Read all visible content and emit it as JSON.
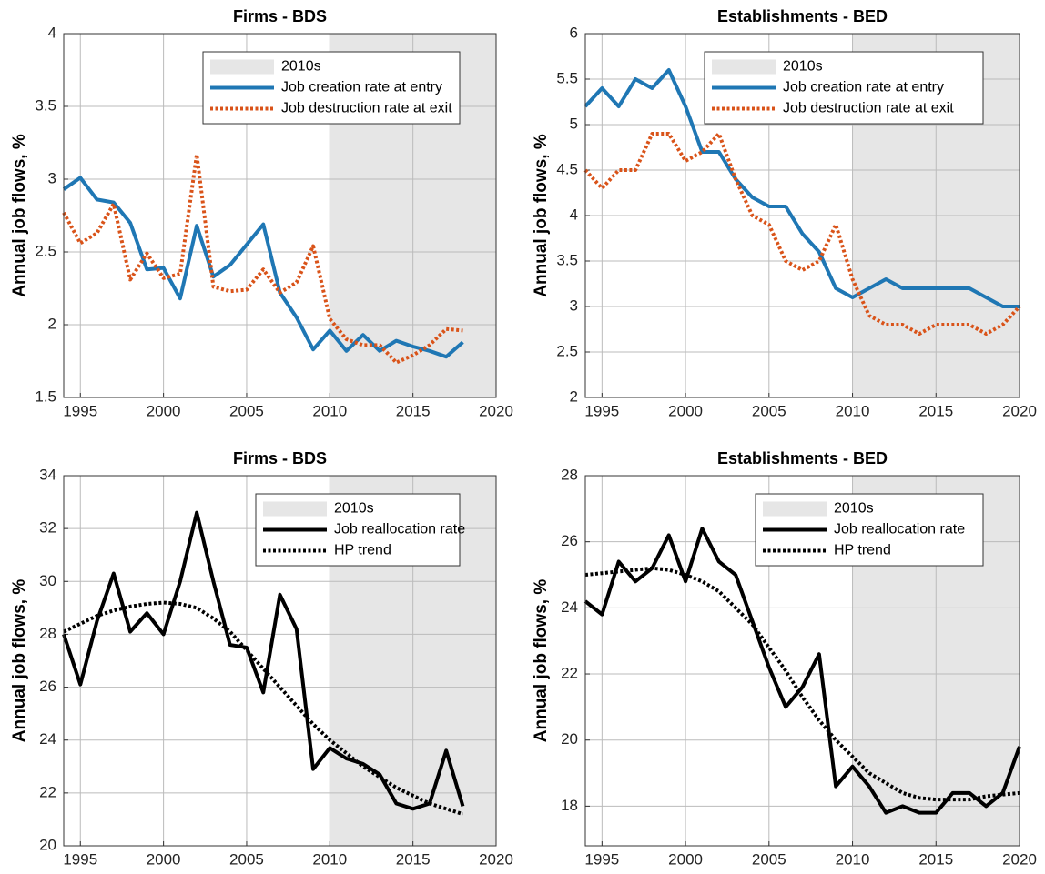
{
  "chart_data": [
    {
      "type": "line",
      "title": "Firms - BDS",
      "ylabel": "Annual job flows, %",
      "grid": true,
      "legend": "upper right",
      "xlim": [
        1994,
        2020
      ],
      "xticks": [
        1995,
        2000,
        2005,
        2010,
        2015,
        2020
      ],
      "ylim": [
        1.5,
        4
      ],
      "yticks": [
        1.5,
        2,
        2.5,
        3,
        3.5,
        4
      ],
      "shade": {
        "label": "2010s",
        "color": "#e6e6e6",
        "range": [
          2010,
          2020
        ]
      },
      "x": [
        1994,
        1995,
        1996,
        1997,
        1998,
        1999,
        2000,
        2001,
        2002,
        2003,
        2004,
        2005,
        2006,
        2007,
        2008,
        2009,
        2010,
        2011,
        2012,
        2013,
        2014,
        2015,
        2016,
        2017,
        2018
      ],
      "series": [
        {
          "name": "Job creation rate at entry",
          "color": "#1f77b4",
          "style": "solid",
          "values": [
            2.93,
            3.01,
            2.86,
            2.84,
            2.7,
            2.38,
            2.39,
            2.18,
            2.68,
            2.33,
            2.41,
            2.55,
            2.69,
            2.22,
            2.05,
            1.83,
            1.96,
            1.82,
            1.93,
            1.82,
            1.89,
            1.85,
            1.82,
            1.78,
            1.88
          ]
        },
        {
          "name": "Job destruction rate at exit",
          "color": "#d95319",
          "style": "dotted",
          "values": [
            2.77,
            2.56,
            2.63,
            2.83,
            2.31,
            2.49,
            2.32,
            2.35,
            3.17,
            2.26,
            2.23,
            2.24,
            2.38,
            2.22,
            2.29,
            2.54,
            2.04,
            1.9,
            1.86,
            1.86,
            1.74,
            1.79,
            1.86,
            1.97,
            1.96
          ]
        }
      ]
    },
    {
      "type": "line",
      "title": "Establishments - BED",
      "ylabel": "Annual job flows, %",
      "grid": true,
      "legend": "upper right",
      "xlim": [
        1994,
        2020
      ],
      "xticks": [
        1995,
        2000,
        2005,
        2010,
        2015,
        2020
      ],
      "ylim": [
        2,
        6
      ],
      "yticks": [
        2,
        2.5,
        3,
        3.5,
        4,
        4.5,
        5,
        5.5,
        6
      ],
      "shade": {
        "label": "2010s",
        "color": "#e6e6e6",
        "range": [
          2010,
          2020
        ]
      },
      "x": [
        1994,
        1995,
        1996,
        1997,
        1998,
        1999,
        2000,
        2001,
        2002,
        2003,
        2004,
        2005,
        2006,
        2007,
        2008,
        2009,
        2010,
        2011,
        2012,
        2013,
        2014,
        2015,
        2016,
        2017,
        2018,
        2019,
        2020
      ],
      "series": [
        {
          "name": "Job creation rate at entry",
          "color": "#1f77b4",
          "style": "solid",
          "values": [
            5.2,
            5.4,
            5.2,
            5.5,
            5.4,
            5.6,
            5.2,
            4.7,
            4.7,
            4.4,
            4.2,
            4.1,
            4.1,
            3.8,
            3.6,
            3.2,
            3.1,
            3.2,
            3.3,
            3.2,
            3.2,
            3.2,
            3.2,
            3.2,
            3.1,
            3.0,
            3.0
          ]
        },
        {
          "name": "Job destruction rate at exit",
          "color": "#d95319",
          "style": "dotted",
          "values": [
            4.5,
            4.3,
            4.5,
            4.5,
            4.9,
            4.9,
            4.6,
            4.7,
            4.9,
            4.4,
            4.0,
            3.9,
            3.5,
            3.4,
            3.5,
            3.9,
            3.3,
            2.9,
            2.8,
            2.8,
            2.7,
            2.8,
            2.8,
            2.8,
            2.7,
            2.8,
            3.0
          ]
        }
      ]
    },
    {
      "type": "line",
      "title": "Firms - BDS",
      "ylabel": "Annual job flows, %",
      "grid": true,
      "legend": "upper right",
      "xlim": [
        1994,
        2020
      ],
      "xticks": [
        1995,
        2000,
        2005,
        2010,
        2015,
        2020
      ],
      "ylim": [
        20,
        34
      ],
      "yticks": [
        20,
        22,
        24,
        26,
        28,
        30,
        32,
        34
      ],
      "shade": {
        "label": "2010s",
        "color": "#e6e6e6",
        "range": [
          2010,
          2020
        ]
      },
      "x": [
        1994,
        1995,
        1996,
        1997,
        1998,
        1999,
        2000,
        2001,
        2002,
        2003,
        2004,
        2005,
        2006,
        2007,
        2008,
        2009,
        2010,
        2011,
        2012,
        2013,
        2014,
        2015,
        2016,
        2017,
        2018
      ],
      "series": [
        {
          "name": "Job reallocation rate",
          "color": "#000000",
          "style": "solid",
          "values": [
            28.0,
            26.1,
            28.5,
            30.3,
            28.1,
            28.8,
            28.0,
            30.0,
            32.6,
            30.0,
            27.6,
            27.5,
            25.8,
            29.5,
            28.2,
            22.9,
            23.7,
            23.3,
            23.1,
            22.7,
            21.6,
            21.4,
            21.6,
            23.6,
            21.5
          ]
        },
        {
          "name": "HP trend",
          "color": "#000000",
          "style": "dotted",
          "values": [
            28.1,
            28.4,
            28.7,
            28.9,
            29.05,
            29.15,
            29.2,
            29.15,
            29.0,
            28.6,
            28.1,
            27.4,
            26.7,
            26.0,
            25.3,
            24.6,
            24.0,
            23.5,
            23.0,
            22.6,
            22.2,
            21.9,
            21.6,
            21.4,
            21.2
          ]
        }
      ]
    },
    {
      "type": "line",
      "title": "Establishments - BED",
      "ylabel": "Annual job flows, %",
      "grid": true,
      "legend": "upper right",
      "xlim": [
        1994,
        2020
      ],
      "xticks": [
        1995,
        2000,
        2005,
        2010,
        2015,
        2020
      ],
      "ylim": [
        16.8,
        28
      ],
      "yticks": [
        18,
        20,
        22,
        24,
        26,
        28
      ],
      "shade": {
        "label": "2010s",
        "color": "#e6e6e6",
        "range": [
          2010,
          2020
        ]
      },
      "x": [
        1994,
        1995,
        1996,
        1997,
        1998,
        1999,
        2000,
        2001,
        2002,
        2003,
        2004,
        2005,
        2006,
        2007,
        2008,
        2009,
        2010,
        2011,
        2012,
        2013,
        2014,
        2015,
        2016,
        2017,
        2018,
        2019,
        2020
      ],
      "series": [
        {
          "name": "Job reallocation rate",
          "color": "#000000",
          "style": "solid",
          "values": [
            24.2,
            23.8,
            25.4,
            24.8,
            25.2,
            26.2,
            24.8,
            26.4,
            25.4,
            25.0,
            23.6,
            22.2,
            21.0,
            21.6,
            22.6,
            18.6,
            19.2,
            18.6,
            17.8,
            18.0,
            17.8,
            17.8,
            18.4,
            18.4,
            18.0,
            18.4,
            19.8
          ]
        },
        {
          "name": "HP trend",
          "color": "#000000",
          "style": "dotted",
          "values": [
            25.0,
            25.05,
            25.1,
            25.15,
            25.2,
            25.15,
            25.0,
            24.8,
            24.5,
            24.0,
            23.5,
            22.8,
            22.1,
            21.3,
            20.6,
            20.0,
            19.5,
            19.0,
            18.7,
            18.4,
            18.25,
            18.2,
            18.2,
            18.2,
            18.3,
            18.35,
            18.4
          ]
        }
      ]
    }
  ]
}
